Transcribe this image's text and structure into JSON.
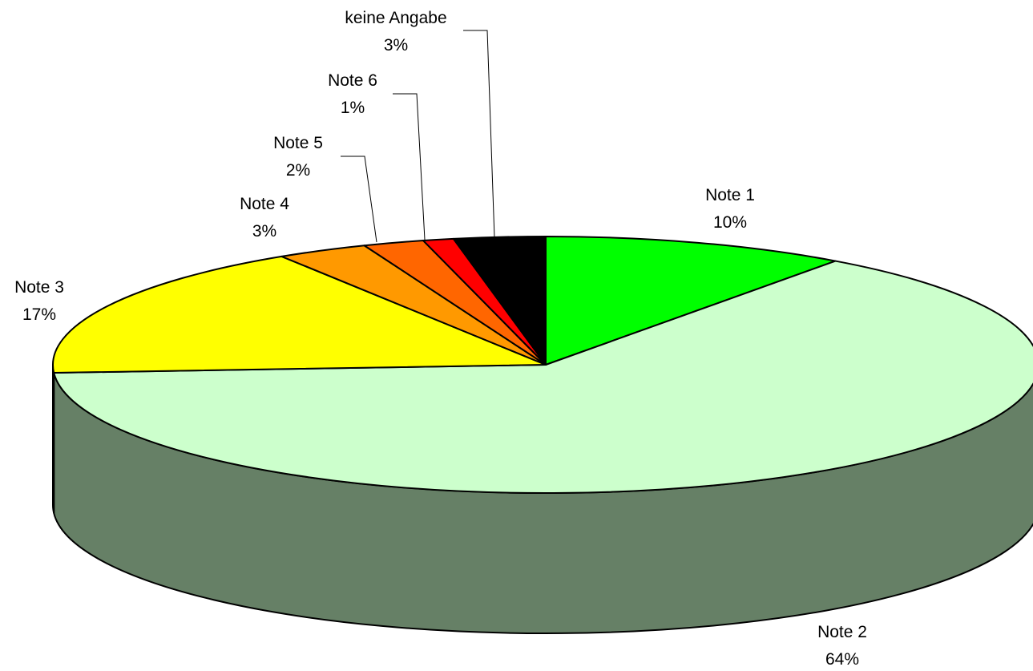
{
  "chart_data": {
    "type": "pie",
    "three_d": true,
    "title": "",
    "slices": [
      {
        "label": "Note 1",
        "percent_label": "10%",
        "value": 10,
        "color": "#00ff00",
        "side_color": "#008000"
      },
      {
        "label": "Note 2",
        "percent_label": "64%",
        "value": 64,
        "color": "#ccffcc",
        "side_color": "#668066"
      },
      {
        "label": "Note 3",
        "percent_label": "17%",
        "value": 17,
        "color": "#ffff00",
        "side_color": "#808000"
      },
      {
        "label": "Note 4",
        "percent_label": "3%",
        "value": 3,
        "color": "#ff9900",
        "side_color": "#804c00"
      },
      {
        "label": "Note 5",
        "percent_label": "2%",
        "value": 2,
        "color": "#ff6600",
        "side_color": "#803300"
      },
      {
        "label": "Note 6",
        "percent_label": "1%",
        "value": 1,
        "color": "#ff0000",
        "side_color": "#800000"
      },
      {
        "label": "keine Angabe",
        "percent_label": "3%",
        "value": 3,
        "color": "#000000",
        "side_color": "#000000"
      }
    ],
    "legend": "none",
    "data_labels": "category and percent, outside with leader lines"
  }
}
